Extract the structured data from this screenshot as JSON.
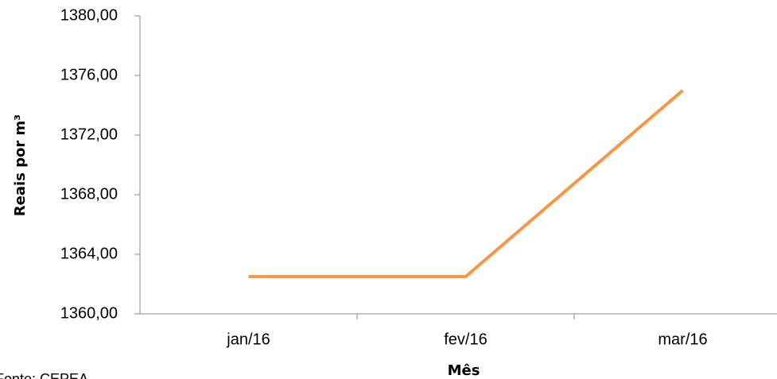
{
  "chart_data": {
    "type": "line",
    "categories": [
      "jan/16",
      "fev/16",
      "mar/16"
    ],
    "series": [
      {
        "name": "Reais por m³",
        "color": "#f79646",
        "values": [
          1362.5,
          1362.5,
          1375
        ]
      }
    ],
    "ylim": [
      1360,
      1380
    ],
    "yticks": [
      {
        "value": 1360,
        "label": "1360,00"
      },
      {
        "value": 1364,
        "label": "1364,00"
      },
      {
        "value": 1368,
        "label": "1368,00"
      },
      {
        "value": 1372,
        "label": "1372,00"
      },
      {
        "value": 1376,
        "label": "1376,00"
      },
      {
        "value": 1380,
        "label": "1380,00"
      }
    ],
    "y_label": "Reais por m³",
    "x_label": "Mês",
    "source": "Fonte: CEPEA",
    "grid": false
  }
}
